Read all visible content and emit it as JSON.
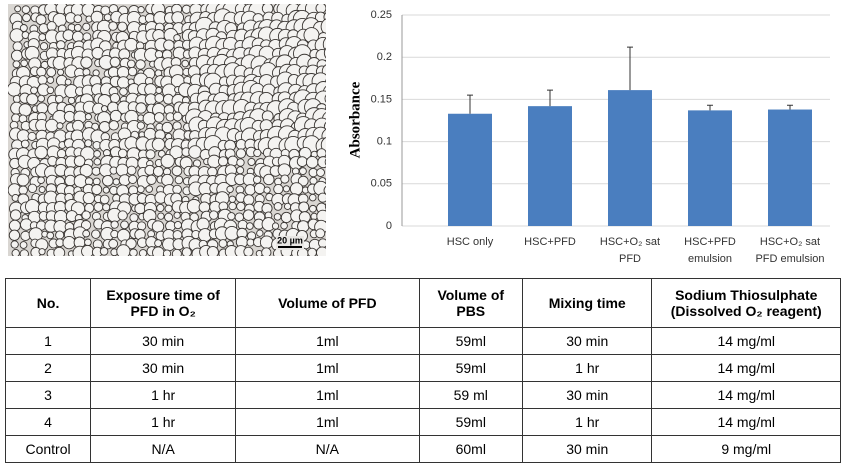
{
  "image": {
    "scale_label": "20 µm"
  },
  "chart_data": {
    "type": "bar",
    "ylabel": "Absorbance",
    "categories": [
      [
        "HSC only"
      ],
      [
        "HSC+PFD"
      ],
      [
        "HSC+O₂ sat",
        "PFD"
      ],
      [
        "HSC+PFD",
        "emulsion"
      ],
      [
        "HSC+O₂ sat",
        "PFD emulsion"
      ]
    ],
    "values": [
      0.133,
      0.142,
      0.161,
      0.137,
      0.138
    ],
    "errors": [
      0.022,
      0.019,
      0.051,
      0.006,
      0.005
    ],
    "color": "#4a7ebf",
    "ylim": [
      0,
      0.25
    ],
    "yticks": [
      0,
      0.05,
      0.1,
      0.15,
      0.2,
      0.25
    ],
    "grid": true
  },
  "table": {
    "header": [
      "No.",
      "Exposure time of PFD in O₂",
      "Volume of PFD",
      "Volume of PBS",
      "Mixing time",
      "Sodium Thiosulphate (Dissolved O₂ reagent)"
    ],
    "rows": [
      [
        "1",
        "30 min",
        "1ml",
        "59ml",
        "30 min",
        "14 mg/ml"
      ],
      [
        "2",
        "30 min",
        "1ml",
        "59ml",
        "1 hr",
        "14 mg/ml"
      ],
      [
        "3",
        "1 hr",
        "1ml",
        "59 ml",
        "30 min",
        "14 mg/ml"
      ],
      [
        "4",
        "1 hr",
        "1ml",
        "59ml",
        "1 hr",
        "14 mg/ml"
      ],
      [
        "Control",
        "N/A",
        "N/A",
        "60ml",
        "30 min",
        "9 mg/ml"
      ]
    ]
  }
}
